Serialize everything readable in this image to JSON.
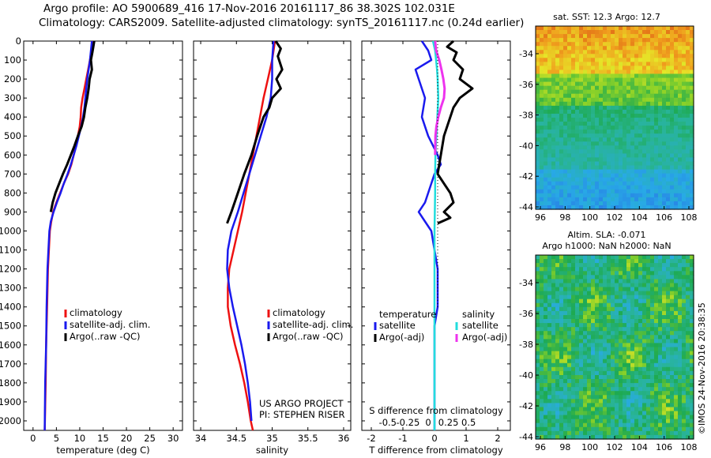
{
  "header": {
    "line1": "Argo profile: AO 5900689_416 17-Nov-2016 20161117_86 38.302S 102.031E",
    "line2": "Climatology: CARS2009. Satellite-adjusted climatology: synTS_20161117.nc (0.24d earlier)"
  },
  "colors": {
    "climatology": "#ee1111",
    "satellite": "#1a1aee",
    "argo": "#000000",
    "satellite_s": "#22dddd",
    "argo_s": "#ee33ee"
  },
  "project": {
    "line1": "US ARGO PROJECT",
    "line2": "PI: STEPHEN RISER"
  },
  "watermark": "©IMOS 24-Nov-2016 20:38:35",
  "chart_data": [
    {
      "type": "line",
      "name": "temperature",
      "xlabel": "temperature (deg C)",
      "ylabel": "",
      "xlim": [
        -2,
        32
      ],
      "ylim": [
        2050,
        0
      ],
      "xticks": [
        0,
        5,
        10,
        15,
        20,
        25,
        30
      ],
      "yticks": [
        0,
        100,
        200,
        300,
        400,
        500,
        600,
        700,
        800,
        900,
        1000,
        1100,
        1200,
        1300,
        1400,
        1500,
        1600,
        1700,
        1800,
        1900,
        2000
      ],
      "legend": [
        "climatology",
        "satellite-adj. clim.",
        "Argo(..raw -QC)"
      ],
      "series": [
        {
          "name": "climatology",
          "x": [
            12.8,
            12.5,
            12.2,
            11.8,
            11.4,
            11.0,
            10.6,
            10.3,
            10.2,
            10.0,
            9.6,
            9.2,
            8.7,
            8.2,
            7.5,
            6.6,
            5.8,
            5.0,
            4.3,
            3.9,
            3.6,
            3.4,
            3.2,
            3.0,
            2.8,
            2.7,
            2.5
          ],
          "y": [
            0,
            50,
            100,
            150,
            200,
            250,
            300,
            350,
            400,
            450,
            500,
            550,
            600,
            650,
            700,
            750,
            800,
            850,
            900,
            950,
            1000,
            1100,
            1200,
            1400,
            1600,
            1800,
            2050
          ]
        },
        {
          "name": "satellite-adj. clim.",
          "x": [
            12.6,
            12.4,
            12.2,
            11.9,
            11.6,
            11.4,
            11.2,
            11.0,
            10.7,
            10.3,
            9.8,
            9.3,
            8.7,
            8.1,
            7.4,
            6.6,
            5.9,
            5.1,
            4.4,
            3.8,
            3.5,
            3.3,
            3.1,
            2.9,
            2.8,
            2.6,
            2.5
          ],
          "y": [
            0,
            50,
            100,
            150,
            200,
            250,
            300,
            350,
            400,
            450,
            500,
            550,
            600,
            650,
            700,
            750,
            800,
            850,
            900,
            950,
            1000,
            1100,
            1200,
            1400,
            1600,
            1800,
            2050
          ]
        },
        {
          "name": "Argo(..raw -QC)",
          "x": [
            13.1,
            12.9,
            12.7,
            12.4,
            12.6,
            12.1,
            11.9,
            11.6,
            11.2,
            10.9,
            10.4,
            9.6,
            8.9,
            8.1,
            7.3,
            6.4,
            5.6,
            4.8,
            4.2,
            3.8
          ],
          "y": [
            0,
            30,
            60,
            100,
            150,
            200,
            250,
            300,
            350,
            400,
            450,
            500,
            550,
            600,
            650,
            700,
            750,
            800,
            850,
            900
          ]
        }
      ]
    },
    {
      "type": "line",
      "name": "salinity",
      "xlabel": "salinity",
      "ylabel": "",
      "xlim": [
        33.9,
        36.1
      ],
      "ylim": [
        2050,
        0
      ],
      "xticks": [
        34,
        34.5,
        35,
        35.5,
        36
      ],
      "legend": [
        "climatology",
        "satellite-adj. clim.",
        "Argo(..raw -QC)"
      ],
      "series": [
        {
          "name": "climatology",
          "x": [
            35.04,
            35.0,
            34.94,
            34.88,
            34.83,
            34.78,
            34.73,
            34.68,
            34.63,
            34.58,
            34.52,
            34.46,
            34.4,
            34.38,
            34.38,
            34.42,
            34.48,
            34.55,
            34.61,
            34.66,
            34.7,
            34.73
          ],
          "y": [
            0,
            100,
            200,
            300,
            400,
            500,
            600,
            700,
            800,
            900,
            1000,
            1100,
            1200,
            1300,
            1400,
            1500,
            1600,
            1700,
            1800,
            1900,
            2000,
            2050
          ]
        },
        {
          "name": "satellite-adj. clim.",
          "x": [
            35.02,
            35.0,
            35.0,
            34.98,
            34.92,
            34.84,
            34.76,
            34.68,
            34.6,
            34.52,
            34.43,
            34.38,
            34.37,
            34.4,
            34.45,
            34.51,
            34.57,
            34.62,
            34.66,
            34.69,
            34.71
          ],
          "y": [
            0,
            100,
            200,
            300,
            400,
            500,
            600,
            700,
            800,
            900,
            1000,
            1100,
            1200,
            1300,
            1400,
            1500,
            1600,
            1700,
            1800,
            1900,
            2000
          ]
        },
        {
          "name": "Argo(..raw -QC)",
          "x": [
            35.05,
            35.12,
            35.08,
            35.14,
            35.06,
            35.12,
            35.0,
            34.96,
            34.88,
            34.79,
            34.71,
            34.61,
            34.52,
            34.43,
            34.37
          ],
          "y": [
            0,
            40,
            80,
            150,
            200,
            250,
            300,
            350,
            400,
            500,
            600,
            700,
            800,
            900,
            960
          ]
        }
      ]
    },
    {
      "type": "line",
      "name": "difference",
      "xlabel": "T difference from climatology",
      "xlabel2": "S difference from climatology",
      "xlim": [
        -2.3,
        2.4
      ],
      "ylim": [
        2050,
        0
      ],
      "xticks": [
        -2,
        -1,
        0,
        1,
        2
      ],
      "xticks_s": [
        -0.5,
        -0.25,
        0,
        0.25,
        0.5
      ],
      "legend_groups": [
        {
          "title": "temperature",
          "items": [
            "satellite",
            "Argo(-adj)"
          ]
        },
        {
          "title": "salinity",
          "items": [
            "satellite",
            "Argo(-adj)"
          ]
        }
      ],
      "series": [
        {
          "name": "temperature satellite",
          "x": [
            -0.4,
            -0.2,
            -0.1,
            -0.6,
            -0.5,
            -0.3,
            -0.4,
            -0.2,
            0.1,
            0.2,
            0.0,
            -0.1,
            -0.2,
            -0.3,
            -0.5,
            -0.3,
            -0.1,
            0.0,
            0.1,
            0.1,
            0.1,
            0.0,
            0.0,
            0.0,
            0.0
          ],
          "y": [
            0,
            50,
            100,
            150,
            200,
            300,
            400,
            500,
            600,
            650,
            700,
            750,
            800,
            850,
            900,
            950,
            1000,
            1100,
            1200,
            1300,
            1400,
            1500,
            1700,
            1900,
            2050
          ]
        },
        {
          "name": "temperature Argo(-adj)",
          "x": [
            0.6,
            0.4,
            0.7,
            0.6,
            0.9,
            0.8,
            1.2,
            0.8,
            0.6,
            0.5,
            0.4,
            0.3,
            0.2,
            0.1,
            0.3,
            0.5,
            0.6,
            0.3,
            0.5,
            0.1
          ],
          "y": [
            0,
            30,
            60,
            100,
            150,
            200,
            250,
            300,
            350,
            400,
            450,
            500,
            600,
            700,
            750,
            800,
            850,
            900,
            930,
            960
          ]
        },
        {
          "name": "salinity satellite",
          "x": [
            -0.05,
            0.02,
            0.05,
            0.08,
            0.1,
            0.12,
            0.09,
            0.06,
            0.03,
            0.02,
            0.02,
            0.01,
            0.0,
            0.0,
            0.0,
            0.0,
            0.0,
            0.0
          ],
          "y": [
            0,
            50,
            100,
            150,
            200,
            300,
            400,
            500,
            600,
            700,
            800,
            900,
            1000,
            1200,
            1400,
            1600,
            1800,
            2050
          ]
        },
        {
          "name": "salinity Argo(-adj)",
          "x": [
            0.02,
            0.05,
            0.15,
            0.22,
            0.28,
            0.32,
            0.3,
            0.2,
            0.12,
            0.06,
            0.03,
            0.02
          ],
          "y": [
            0,
            50,
            100,
            150,
            200,
            250,
            300,
            350,
            400,
            450,
            500,
            600
          ]
        }
      ]
    }
  ],
  "maps": [
    {
      "title": "sat. SST: 12.3 Argo: 12.7",
      "type": "heatmap",
      "xticks": [
        96,
        98,
        100,
        102,
        104,
        106,
        108
      ],
      "yticks": [
        -34,
        -36,
        -38,
        -40,
        -42,
        -44
      ],
      "palette": "sst"
    },
    {
      "title": "Altim. SLA: -0.071",
      "title2": "Argo h1000: NaN h2000: NaN",
      "type": "heatmap",
      "xticks": [
        96,
        98,
        100,
        102,
        104,
        106,
        108
      ],
      "yticks": [
        -34,
        -36,
        -38,
        -40,
        -42,
        -44
      ],
      "palette": "sla"
    }
  ]
}
